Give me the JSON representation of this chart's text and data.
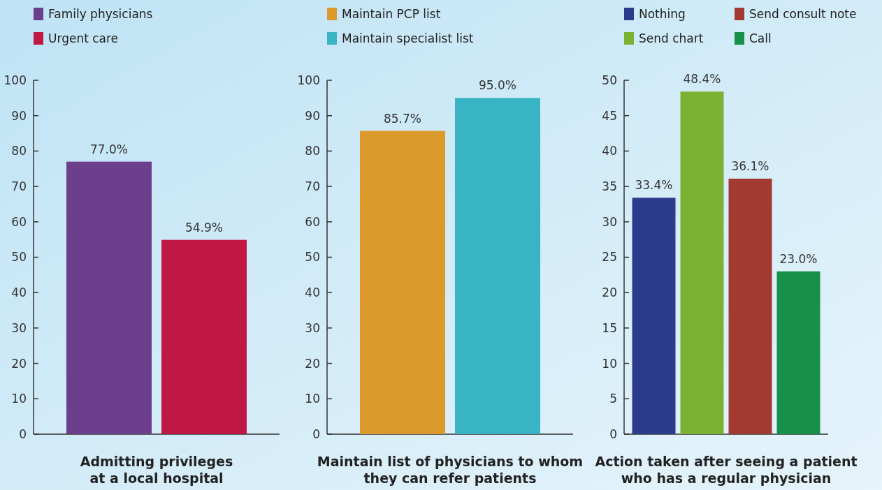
{
  "chart_data": [
    {
      "type": "bar",
      "xlabel": "Admitting privileges\nat a local hospital",
      "categories": [
        null
      ],
      "ylim": [
        0,
        100
      ],
      "yticks": [
        0,
        10,
        20,
        30,
        40,
        50,
        60,
        70,
        80,
        90,
        100
      ],
      "legend": "top",
      "grid": false,
      "series": [
        {
          "name": "Family physicians",
          "color": "#6b3f8c",
          "values": [
            77.0
          ],
          "value_labels": [
            "77.0%"
          ]
        },
        {
          "name": "Urgent care",
          "color": "#c01844",
          "values": [
            54.9
          ],
          "value_labels": [
            "54.9%"
          ]
        }
      ]
    },
    {
      "type": "bar",
      "xlabel": "Maintain list of physicians to whom\nthey can refer patients",
      "categories": [
        null
      ],
      "ylim": [
        0,
        100
      ],
      "yticks": [
        0,
        10,
        20,
        30,
        40,
        50,
        60,
        70,
        80,
        90,
        100
      ],
      "legend": "top",
      "grid": false,
      "series": [
        {
          "name": "Maintain PCP list",
          "color": "#dd9a2c",
          "values": [
            85.7
          ],
          "value_labels": [
            "85.7%"
          ]
        },
        {
          "name": "Maintain specialist list",
          "color": "#38b4c4",
          "values": [
            95.0
          ],
          "value_labels": [
            "95.0%"
          ]
        }
      ]
    },
    {
      "type": "bar",
      "xlabel": "Action taken after seeing a patient\nwho has a regular physician",
      "categories": [
        null
      ],
      "ylim": [
        0,
        50
      ],
      "yticks": [
        0,
        5,
        10,
        15,
        20,
        25,
        30,
        35,
        40,
        45,
        50
      ],
      "legend": "top",
      "grid": false,
      "series": [
        {
          "name": "Nothing",
          "color": "#2c3c8c",
          "values": [
            33.4
          ],
          "value_labels": [
            "33.4%"
          ]
        },
        {
          "name": "Send chart",
          "color": "#7cb234",
          "values": [
            48.4
          ],
          "value_labels": [
            "48.4%"
          ]
        },
        {
          "name": "Send consult note",
          "color": "#a23a32",
          "values": [
            36.1
          ],
          "value_labels": [
            "36.1%"
          ]
        },
        {
          "name": "Call",
          "color": "#17904a",
          "values": [
            23.0
          ],
          "value_labels": [
            "23.0%"
          ]
        }
      ]
    }
  ]
}
